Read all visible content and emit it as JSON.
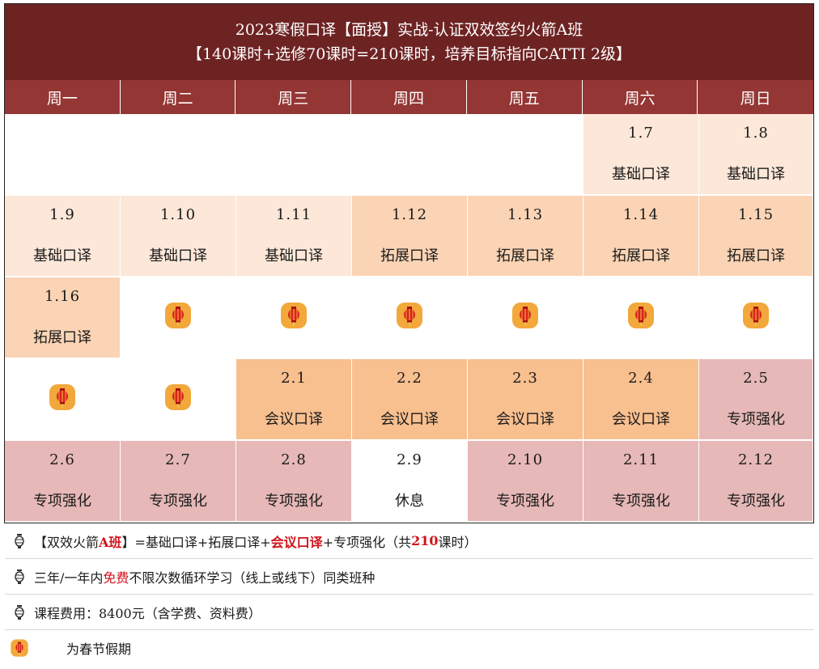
{
  "title": {
    "line1": "2023寒假口译【面授】实战-认证双效签约火箭A班",
    "line2": "【140课时+选修70课时=210课时，培养目标指向CATTI 2级】"
  },
  "weekdays": [
    "周一",
    "周二",
    "周三",
    "周四",
    "周五",
    "周六",
    "周日"
  ],
  "rows": [
    [
      {
        "date": "",
        "course": "",
        "type": "none"
      },
      {
        "date": "",
        "course": "",
        "type": "none"
      },
      {
        "date": "",
        "course": "",
        "type": "none"
      },
      {
        "date": "",
        "course": "",
        "type": "none"
      },
      {
        "date": "",
        "course": "",
        "type": "none"
      },
      {
        "date": "1.7",
        "course": "基础口译",
        "type": "basic"
      },
      {
        "date": "1.8",
        "course": "基础口译",
        "type": "basic"
      }
    ],
    [
      {
        "date": "1.9",
        "course": "基础口译",
        "type": "basic"
      },
      {
        "date": "1.10",
        "course": "基础口译",
        "type": "basic"
      },
      {
        "date": "1.11",
        "course": "基础口译",
        "type": "basic"
      },
      {
        "date": "1.12",
        "course": "拓展口译",
        "type": "ext"
      },
      {
        "date": "1.13",
        "course": "拓展口译",
        "type": "ext"
      },
      {
        "date": "1.14",
        "course": "拓展口译",
        "type": "ext"
      },
      {
        "date": "1.15",
        "course": "拓展口译",
        "type": "ext"
      }
    ],
    [
      {
        "date": "1.16",
        "course": "拓展口译",
        "type": "ext"
      },
      {
        "date": "",
        "course": "",
        "type": "holiday"
      },
      {
        "date": "",
        "course": "",
        "type": "holiday"
      },
      {
        "date": "",
        "course": "",
        "type": "holiday"
      },
      {
        "date": "",
        "course": "",
        "type": "holiday"
      },
      {
        "date": "",
        "course": "",
        "type": "holiday"
      },
      {
        "date": "",
        "course": "",
        "type": "holiday"
      }
    ],
    [
      {
        "date": "",
        "course": "",
        "type": "holiday"
      },
      {
        "date": "",
        "course": "",
        "type": "holiday"
      },
      {
        "date": "2.1",
        "course": "会议口译",
        "type": "conf"
      },
      {
        "date": "2.2",
        "course": "会议口译",
        "type": "conf"
      },
      {
        "date": "2.3",
        "course": "会议口译",
        "type": "conf"
      },
      {
        "date": "2.4",
        "course": "会议口译",
        "type": "conf"
      },
      {
        "date": "2.5",
        "course": "专项强化",
        "type": "spec"
      }
    ],
    [
      {
        "date": "2.6",
        "course": "专项强化",
        "type": "spec"
      },
      {
        "date": "2.7",
        "course": "专项强化",
        "type": "spec"
      },
      {
        "date": "2.8",
        "course": "专项强化",
        "type": "spec"
      },
      {
        "date": "2.9",
        "course": "休息",
        "type": "rest"
      },
      {
        "date": "2.10",
        "course": "专项强化",
        "type": "spec"
      },
      {
        "date": "2.11",
        "course": "专项强化",
        "type": "spec"
      },
      {
        "date": "2.12",
        "course": "专项强化",
        "type": "spec"
      }
    ]
  ],
  "notes": {
    "line1": {
      "a": "【双效火箭",
      "b": "A班",
      "c": "】=基础口译+拓展口译+",
      "d": "会议口译",
      "e": "+专项强化（共",
      "f": "210",
      "g": "课时）"
    },
    "line2": {
      "a": "三年/一年内",
      "b": "免费",
      "c": "不限次数循环学习（线上或线下）同类班种"
    },
    "line3": "课程费用：8400元（含学费、资料费）",
    "line4": "为春节假期"
  },
  "colors": {
    "title_bg": "#6e2323",
    "header_bg": "#943634",
    "basic": "#fce7d8",
    "extension": "#fbd4b5",
    "conference": "#f8bf8f",
    "special": "#e6b8b7",
    "highlight": "#d0121b"
  },
  "icons": {
    "holiday": "lantern-icon",
    "bullet": "lantern-outline-icon"
  }
}
